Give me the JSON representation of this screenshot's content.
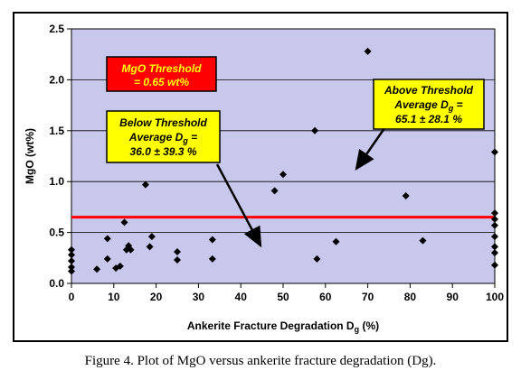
{
  "chart_data": {
    "type": "scatter",
    "xlabel_main": "Ankerite Fracture Degradation D",
    "xlabel_sub": "g",
    "xlabel_tail": " (%)",
    "ylabel": "MgO (wt%)",
    "xlim": [
      0,
      100
    ],
    "ylim": [
      0,
      2.5
    ],
    "x_ticks": [
      0,
      10,
      20,
      30,
      40,
      50,
      60,
      70,
      80,
      90,
      100
    ],
    "y_ticks": [
      "0.0",
      "0.5",
      "1.0",
      "1.5",
      "2.0",
      "2.5"
    ],
    "grid": "horizontal",
    "threshold": {
      "value": 0.65,
      "color": "#ff0000"
    },
    "colors": {
      "plot_bg": "#c8c8ec",
      "marker": "#000000",
      "threshold": "#ff0000",
      "box_yellow": "#ffff00",
      "box_red": "#ff0000"
    },
    "points": [
      {
        "x": 0,
        "y": 0.33
      },
      {
        "x": 0,
        "y": 0.28
      },
      {
        "x": 0,
        "y": 0.22
      },
      {
        "x": 0,
        "y": 0.16
      },
      {
        "x": 0,
        "y": 0.12
      },
      {
        "x": 6,
        "y": 0.14
      },
      {
        "x": 8.5,
        "y": 0.44
      },
      {
        "x": 8.5,
        "y": 0.24
      },
      {
        "x": 10.5,
        "y": 0.15
      },
      {
        "x": 11.5,
        "y": 0.17
      },
      {
        "x": 12.5,
        "y": 0.6
      },
      {
        "x": 13,
        "y": 0.33
      },
      {
        "x": 13.5,
        "y": 0.37
      },
      {
        "x": 14,
        "y": 0.33
      },
      {
        "x": 17.5,
        "y": 0.97
      },
      {
        "x": 18.5,
        "y": 0.36
      },
      {
        "x": 19,
        "y": 0.46
      },
      {
        "x": 25,
        "y": 0.31
      },
      {
        "x": 25,
        "y": 0.23
      },
      {
        "x": 33.3,
        "y": 0.43
      },
      {
        "x": 33.3,
        "y": 0.24
      },
      {
        "x": 48,
        "y": 0.91
      },
      {
        "x": 50,
        "y": 1.07
      },
      {
        "x": 57.5,
        "y": 1.5
      },
      {
        "x": 58,
        "y": 0.24
      },
      {
        "x": 62.5,
        "y": 0.41
      },
      {
        "x": 70,
        "y": 2.28
      },
      {
        "x": 79,
        "y": 0.86
      },
      {
        "x": 83,
        "y": 0.42
      },
      {
        "x": 100,
        "y": 1.29
      },
      {
        "x": 100,
        "y": 0.69
      },
      {
        "x": 100,
        "y": 0.63
      },
      {
        "x": 100,
        "y": 0.57
      },
      {
        "x": 100,
        "y": 0.46
      },
      {
        "x": 100,
        "y": 0.36
      },
      {
        "x": 100,
        "y": 0.3
      },
      {
        "x": 100,
        "y": 0.18
      }
    ],
    "annotations": {
      "threshold_box": {
        "line1": "MgO Threshold",
        "line2": "= 0.65 wt%"
      },
      "below_box": {
        "line1": "Below Threshold",
        "line2a": "Average D",
        "line2_sub": "g",
        "line2b": " =",
        "line3": "36.0 ± 39.3 %"
      },
      "above_box": {
        "line1": "Above Threshold",
        "line2a": "Average D",
        "line2_sub": "g",
        "line2b": " =",
        "line3": "65.1 ± 28.1 %"
      }
    }
  },
  "caption": "Figure 4.  Plot of MgO versus ankerite fracture degradation (Dg)."
}
